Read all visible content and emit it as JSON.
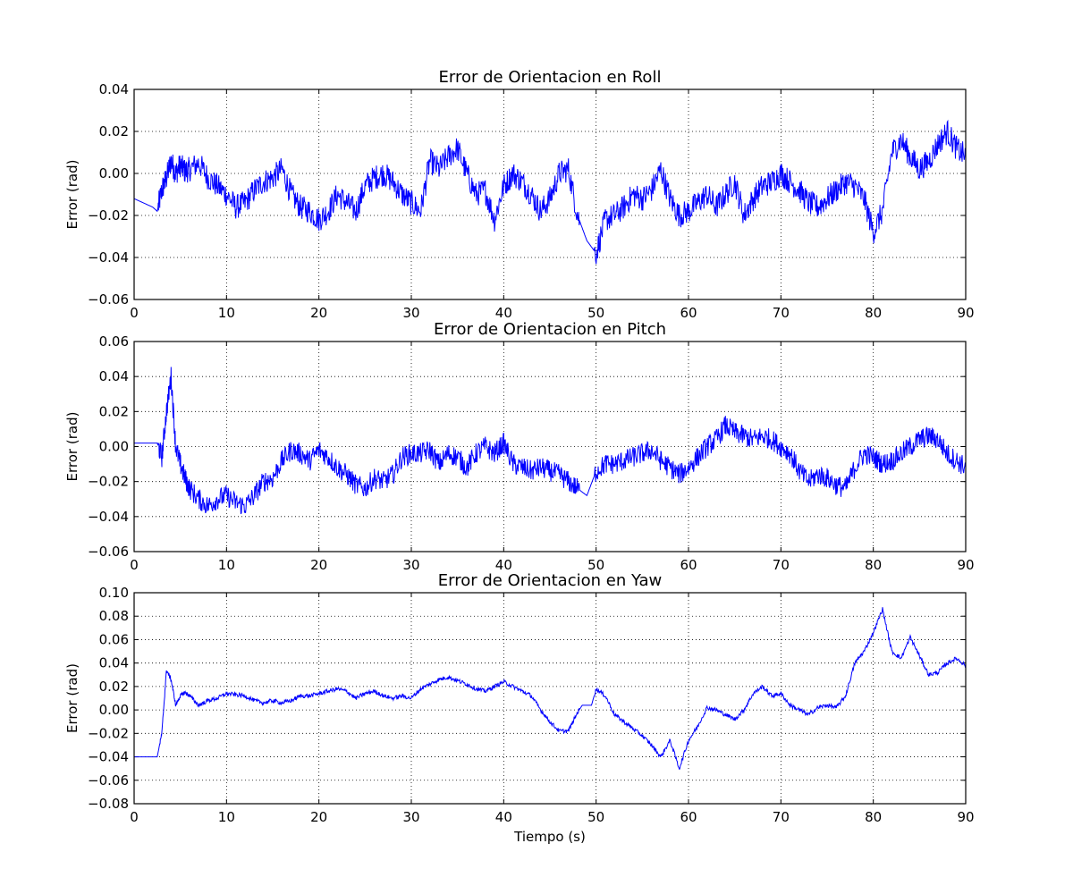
{
  "figure": {
    "line_color": "#0000ff",
    "grid": "dotted",
    "xlabel": "Tiempo (s)"
  },
  "chart_data": [
    {
      "type": "line",
      "title": "Error de Orientacion en Roll",
      "xlabel": "",
      "ylabel": "Error (rad)",
      "xlim": [
        0,
        90
      ],
      "ylim": [
        -0.06,
        0.04
      ],
      "xticks": [
        "0",
        "10",
        "20",
        "30",
        "40",
        "50",
        "60",
        "70",
        "80",
        "90"
      ],
      "yticks": [
        "0.04",
        "0.02",
        "0.00",
        "−0.02",
        "−0.04",
        "−0.06"
      ],
      "grid": true,
      "series": [
        {
          "x": [
            0,
            1,
            2,
            2.5,
            3,
            3.5,
            4,
            4.5,
            5,
            5.5,
            6,
            7,
            8,
            9,
            10,
            11,
            12,
            13,
            14,
            15,
            16,
            17,
            18,
            19,
            20,
            21,
            22,
            23,
            24,
            25,
            26,
            27,
            28,
            29,
            30,
            31,
            32,
            33,
            34,
            35,
            36,
            37,
            38,
            39,
            40,
            41,
            42,
            43,
            44,
            45,
            46,
            47,
            48,
            49,
            50,
            51,
            52,
            53,
            54,
            55,
            56,
            57,
            58,
            59,
            60,
            61,
            62,
            63,
            64,
            65,
            66,
            67,
            68,
            69,
            70,
            71,
            72,
            73,
            74,
            75,
            76,
            77,
            78,
            79,
            80,
            81,
            82,
            83,
            84,
            85,
            86,
            87,
            88,
            89,
            90
          ],
          "values": [
            -0.012,
            -0.014,
            -0.016,
            -0.018,
            -0.008,
            -0.002,
            0.006,
            0.0,
            0.004,
            0.001,
            0.002,
            0.005,
            -0.002,
            -0.006,
            -0.01,
            -0.016,
            -0.014,
            -0.008,
            -0.004,
            -0.002,
            0.002,
            -0.01,
            -0.016,
            -0.018,
            -0.022,
            -0.018,
            -0.01,
            -0.014,
            -0.018,
            -0.006,
            -0.002,
            0.0,
            -0.004,
            -0.01,
            -0.014,
            -0.018,
            0.006,
            0.002,
            0.008,
            0.012,
            0.0,
            -0.01,
            -0.008,
            -0.022,
            -0.006,
            0.0,
            -0.004,
            -0.01,
            -0.018,
            -0.012,
            0.0,
            0.002,
            -0.02,
            -0.032,
            -0.038,
            -0.022,
            -0.02,
            -0.016,
            -0.01,
            -0.012,
            -0.008,
            0.002,
            -0.012,
            -0.02,
            -0.018,
            -0.014,
            -0.01,
            -0.016,
            -0.01,
            -0.004,
            -0.02,
            -0.012,
            -0.006,
            -0.004,
            0.0,
            -0.004,
            -0.008,
            -0.014,
            -0.016,
            -0.012,
            -0.008,
            -0.004,
            -0.006,
            -0.012,
            -0.028,
            -0.018,
            0.01,
            0.016,
            0.008,
            0.002,
            0.006,
            0.014,
            0.02,
            0.012,
            0.008
          ]
        }
      ]
    },
    {
      "type": "line",
      "title": "Error de Orientacion en Pitch",
      "xlabel": "",
      "ylabel": "Error (rad)",
      "xlim": [
        0,
        90
      ],
      "ylim": [
        -0.06,
        0.06
      ],
      "xticks": [
        "0",
        "10",
        "20",
        "30",
        "40",
        "50",
        "60",
        "70",
        "80",
        "90"
      ],
      "yticks": [
        "0.06",
        "0.04",
        "0.02",
        "0.00",
        "−0.02",
        "−0.04",
        "−0.06"
      ],
      "grid": true,
      "series": [
        {
          "x": [
            0,
            1,
            2,
            2.5,
            3,
            3.5,
            4,
            4.5,
            5,
            5.5,
            6,
            7,
            8,
            9,
            10,
            11,
            12,
            13,
            14,
            15,
            16,
            17,
            18,
            19,
            20,
            21,
            22,
            23,
            24,
            25,
            26,
            27,
            28,
            29,
            30,
            31,
            32,
            33,
            34,
            35,
            36,
            37,
            38,
            39,
            40,
            41,
            42,
            43,
            44,
            45,
            46,
            47,
            48,
            49,
            50,
            51,
            52,
            53,
            54,
            55,
            56,
            57,
            58,
            59,
            60,
            61,
            62,
            63,
            64,
            65,
            66,
            67,
            68,
            69,
            70,
            71,
            72,
            73,
            74,
            75,
            76,
            77,
            78,
            79,
            80,
            81,
            82,
            83,
            84,
            85,
            86,
            87,
            88,
            89,
            90
          ],
          "values": [
            0.002,
            0.002,
            0.002,
            0.002,
            -0.006,
            0.02,
            0.04,
            0.0,
            -0.01,
            -0.018,
            -0.024,
            -0.03,
            -0.034,
            -0.03,
            -0.028,
            -0.032,
            -0.034,
            -0.028,
            -0.02,
            -0.018,
            -0.008,
            -0.002,
            -0.004,
            -0.008,
            -0.002,
            -0.006,
            -0.012,
            -0.016,
            -0.022,
            -0.024,
            -0.018,
            -0.02,
            -0.016,
            -0.006,
            -0.004,
            -0.004,
            -0.002,
            -0.01,
            -0.004,
            -0.006,
            -0.012,
            -0.004,
            0.0,
            -0.004,
            0.002,
            -0.01,
            -0.012,
            -0.014,
            -0.012,
            -0.014,
            -0.016,
            -0.02,
            -0.024,
            -0.028,
            -0.014,
            -0.01,
            -0.01,
            -0.008,
            -0.006,
            -0.004,
            -0.002,
            -0.008,
            -0.012,
            -0.016,
            -0.012,
            -0.006,
            0.0,
            0.004,
            0.012,
            0.008,
            0.006,
            0.004,
            0.006,
            0.004,
            0.0,
            -0.004,
            -0.014,
            -0.02,
            -0.016,
            -0.018,
            -0.022,
            -0.024,
            -0.012,
            -0.004,
            -0.006,
            -0.01,
            -0.008,
            -0.004,
            0.0,
            0.004,
            0.006,
            0.004,
            -0.004,
            -0.008,
            -0.012
          ]
        }
      ]
    },
    {
      "type": "line",
      "title": "Error de Orientacion en Yaw",
      "xlabel": "Tiempo (s)",
      "ylabel": "Error (rad)",
      "xlim": [
        0,
        90
      ],
      "ylim": [
        -0.08,
        0.1
      ],
      "xticks": [
        "0",
        "10",
        "20",
        "30",
        "40",
        "50",
        "60",
        "70",
        "80",
        "90"
      ],
      "yticks": [
        "0.10",
        "0.08",
        "0.06",
        "0.04",
        "0.02",
        "0.00",
        "−0.02",
        "−0.04",
        "−0.06",
        "−0.08"
      ],
      "grid": true,
      "series": [
        {
          "x": [
            0,
            1,
            2,
            2.5,
            3,
            3.5,
            4,
            4.5,
            5,
            5.5,
            6,
            7,
            8,
            9,
            10,
            11,
            12,
            13,
            14,
            15,
            16,
            17,
            18,
            19,
            20,
            21,
            22,
            23,
            24,
            25,
            26,
            27,
            28,
            29,
            30,
            31,
            32,
            33,
            34,
            35,
            36,
            37,
            38,
            39,
            40,
            41,
            42,
            43,
            44,
            45,
            46,
            47,
            48,
            48.5,
            49,
            49.5,
            50,
            51,
            52,
            53,
            54,
            55,
            56,
            57,
            58,
            59,
            60,
            61,
            62,
            63,
            64,
            65,
            66,
            67,
            68,
            69,
            70,
            71,
            72,
            73,
            74,
            75,
            76,
            77,
            78,
            79,
            80,
            81,
            82,
            83,
            84,
            85,
            86,
            87,
            88,
            89,
            90
          ],
          "values": [
            -0.04,
            -0.04,
            -0.04,
            -0.04,
            -0.02,
            0.034,
            0.026,
            0.004,
            0.012,
            0.015,
            0.012,
            0.004,
            0.008,
            0.01,
            0.014,
            0.013,
            0.012,
            0.008,
            0.006,
            0.008,
            0.006,
            0.008,
            0.012,
            0.012,
            0.014,
            0.016,
            0.018,
            0.016,
            0.01,
            0.014,
            0.016,
            0.012,
            0.01,
            0.012,
            0.01,
            0.018,
            0.022,
            0.026,
            0.028,
            0.025,
            0.022,
            0.018,
            0.016,
            0.02,
            0.024,
            0.02,
            0.016,
            0.012,
            0.0,
            -0.01,
            -0.018,
            -0.018,
            -0.002,
            0.004,
            0.004,
            0.004,
            0.018,
            0.012,
            -0.004,
            -0.01,
            -0.016,
            -0.022,
            -0.03,
            -0.04,
            -0.026,
            -0.05,
            -0.026,
            -0.014,
            0.002,
            0.0,
            -0.004,
            -0.008,
            0.0,
            0.014,
            0.02,
            0.012,
            0.014,
            0.004,
            0.0,
            -0.004,
            0.002,
            0.004,
            0.002,
            0.012,
            0.04,
            0.05,
            0.066,
            0.086,
            0.05,
            0.044,
            0.062,
            0.046,
            0.03,
            0.032,
            0.04,
            0.044,
            0.038
          ]
        }
      ]
    }
  ]
}
